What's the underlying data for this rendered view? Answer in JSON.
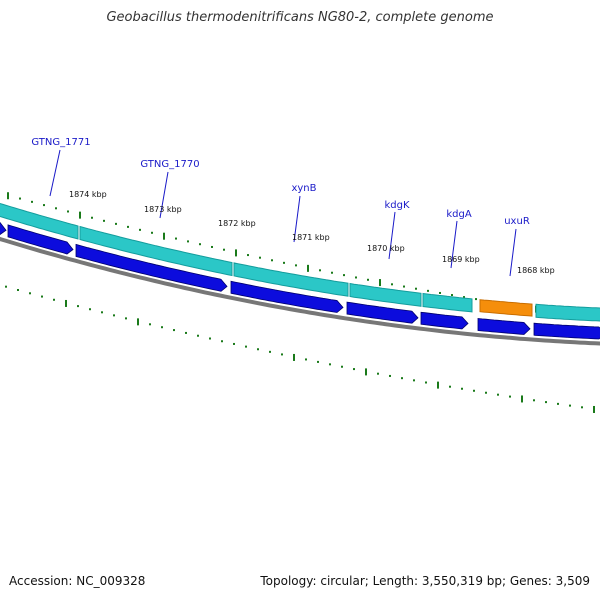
{
  "header": {
    "title": "Geobacillus thermodenitrificans NG80-2, complete genome"
  },
  "footer": {
    "accession": "Accession: NC_009328",
    "summary": "Topology: circular; Length: 3,550,319 bp; Genes: 3,509"
  },
  "colors": {
    "cds_forward": "#2bc7c7",
    "cds_reverse": "#0c0cdd",
    "rna_feature": "#f58e0b",
    "backbone": "#777777",
    "ticks": "#1a7a1a",
    "gene_label": "#1a1ac8"
  },
  "ruler": {
    "labels": [
      "1874 kbp",
      "1873 kbp",
      "1872 kbp",
      "1871 kbp",
      "1870 kbp",
      "1869 kbp",
      "1868 kbp"
    ]
  },
  "genes": [
    {
      "name": "GTNG_1771"
    },
    {
      "name": "GTNG_1770"
    },
    {
      "name": "xynB"
    },
    {
      "name": "kdgK"
    },
    {
      "name": "kdgA"
    },
    {
      "name": "uxuR"
    }
  ]
}
